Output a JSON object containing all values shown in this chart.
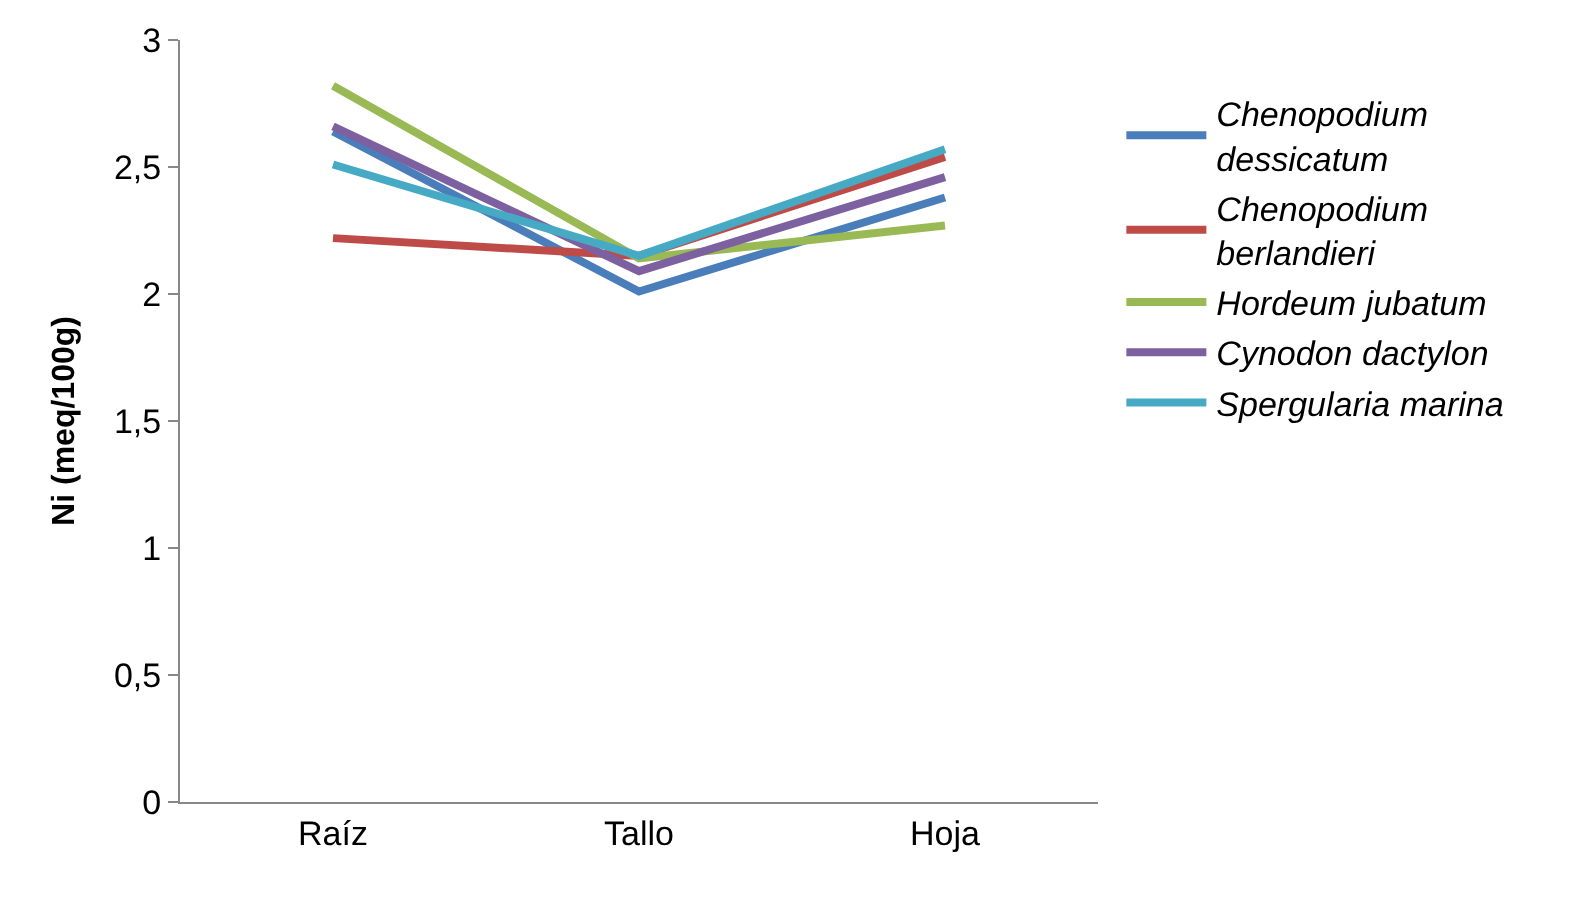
{
  "chart_data": {
    "type": "line",
    "ylabel": "Ni (meq/100g)",
    "categories": [
      "Raíz",
      "Tallo",
      "Hoja"
    ],
    "ylim": [
      0,
      3
    ],
    "yticks": [
      {
        "value": 0,
        "label": "0"
      },
      {
        "value": 0.5,
        "label": "0,5"
      },
      {
        "value": 1,
        "label": "1"
      },
      {
        "value": 1.5,
        "label": "1,5"
      },
      {
        "value": 2,
        "label": "2"
      },
      {
        "value": 2.5,
        "label": "2,5"
      },
      {
        "value": 3,
        "label": "3"
      }
    ],
    "legend": "right",
    "marker": "none",
    "line_style": "solid",
    "series": [
      {
        "name": "Chenopodium dessicatum",
        "color": "#4a7ebb",
        "values": [
          2.64,
          2.01,
          2.38
        ]
      },
      {
        "name": "Chenopodium berlandieri",
        "color": "#be4b48",
        "values": [
          2.22,
          2.15,
          2.54
        ]
      },
      {
        "name": "Hordeum jubatum",
        "color": "#98b954",
        "values": [
          2.82,
          2.14,
          2.27
        ]
      },
      {
        "name": "Cynodon dactylon",
        "color": "#7d60a0",
        "values": [
          2.66,
          2.09,
          2.46
        ]
      },
      {
        "name": "Spergularia marina",
        "color": "#46aac5",
        "values": [
          2.51,
          2.15,
          2.57
        ]
      }
    ]
  }
}
